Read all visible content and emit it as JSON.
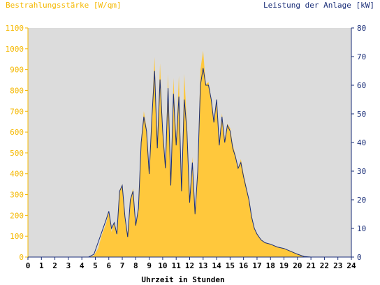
{
  "chart_data": {
    "type": "area",
    "left_axis_title": "Bestrahlungsstärke [W/qm]",
    "right_axis_title": "Leistung der Anlage [kW]",
    "xlabel": "Uhrzeit in Stunden",
    "xlim": [
      0,
      24
    ],
    "ylim_left": [
      0,
      1100
    ],
    "ylim_right": [
      0,
      80
    ],
    "x_ticks": [
      "0",
      "1",
      "2",
      "3",
      "4",
      "5",
      "6",
      "7",
      "8",
      "9",
      "10",
      "11",
      "12",
      "13",
      "14",
      "15",
      "16",
      "17",
      "18",
      "19",
      "20",
      "21",
      "22",
      "23",
      "24"
    ],
    "left_ticks": [
      "0",
      "100",
      "200",
      "300",
      "400",
      "500",
      "600",
      "700",
      "800",
      "900",
      "1000",
      "1100"
    ],
    "right_ticks": [
      "0",
      "10",
      "20",
      "30",
      "40",
      "50",
      "60",
      "70",
      "80"
    ],
    "series": [
      {
        "name": "Bestrahlungsstärke",
        "axis": "left",
        "style": "filled-area",
        "points": [
          [
            0,
            0
          ],
          [
            4.5,
            0
          ],
          [
            4.9,
            8
          ],
          [
            5.2,
            40
          ],
          [
            5.5,
            110
          ],
          [
            5.8,
            160
          ],
          [
            6.0,
            220
          ],
          [
            6.2,
            120
          ],
          [
            6.4,
            170
          ],
          [
            6.6,
            100
          ],
          [
            6.8,
            320
          ],
          [
            7.0,
            350
          ],
          [
            7.2,
            200
          ],
          [
            7.4,
            90
          ],
          [
            7.6,
            280
          ],
          [
            7.8,
            330
          ],
          [
            8.0,
            150
          ],
          [
            8.2,
            240
          ],
          [
            8.4,
            560
          ],
          [
            8.6,
            700
          ],
          [
            8.8,
            620
          ],
          [
            9.0,
            400
          ],
          [
            9.2,
            700
          ],
          [
            9.4,
            960
          ],
          [
            9.6,
            550
          ],
          [
            9.8,
            930
          ],
          [
            10.0,
            620
          ],
          [
            10.2,
            440
          ],
          [
            10.4,
            880
          ],
          [
            10.6,
            350
          ],
          [
            10.8,
            860
          ],
          [
            11.0,
            560
          ],
          [
            11.2,
            870
          ],
          [
            11.4,
            330
          ],
          [
            11.6,
            880
          ],
          [
            11.8,
            640
          ],
          [
            12.0,
            260
          ],
          [
            12.2,
            480
          ],
          [
            12.4,
            210
          ],
          [
            12.6,
            430
          ],
          [
            12.8,
            900
          ],
          [
            13.0,
            990
          ],
          [
            13.2,
            830
          ],
          [
            13.4,
            840
          ],
          [
            13.6,
            760
          ],
          [
            13.8,
            640
          ],
          [
            14.0,
            760
          ],
          [
            14.2,
            540
          ],
          [
            14.4,
            690
          ],
          [
            14.6,
            560
          ],
          [
            14.8,
            640
          ],
          [
            15.0,
            620
          ],
          [
            15.2,
            540
          ],
          [
            15.4,
            490
          ],
          [
            15.6,
            430
          ],
          [
            15.8,
            470
          ],
          [
            16.0,
            400
          ],
          [
            16.2,
            340
          ],
          [
            16.4,
            280
          ],
          [
            16.6,
            200
          ],
          [
            16.8,
            140
          ],
          [
            17.0,
            110
          ],
          [
            17.3,
            85
          ],
          [
            17.6,
            70
          ],
          [
            18.0,
            60
          ],
          [
            18.5,
            50
          ],
          [
            19.0,
            40
          ],
          [
            19.5,
            30
          ],
          [
            20.0,
            15
          ],
          [
            20.5,
            3
          ],
          [
            21.0,
            0
          ],
          [
            24,
            0
          ]
        ]
      },
      {
        "name": "Leistung der Anlage",
        "axis": "right",
        "style": "line",
        "points": [
          [
            0,
            0
          ],
          [
            4.5,
            0
          ],
          [
            4.9,
            1
          ],
          [
            5.2,
            5
          ],
          [
            5.5,
            9
          ],
          [
            5.8,
            13
          ],
          [
            6.0,
            16
          ],
          [
            6.2,
            10
          ],
          [
            6.4,
            12
          ],
          [
            6.6,
            8
          ],
          [
            6.8,
            23
          ],
          [
            7.0,
            25
          ],
          [
            7.2,
            14
          ],
          [
            7.4,
            7
          ],
          [
            7.6,
            20
          ],
          [
            7.8,
            23
          ],
          [
            8.0,
            11
          ],
          [
            8.2,
            17
          ],
          [
            8.4,
            40
          ],
          [
            8.6,
            49
          ],
          [
            8.8,
            44
          ],
          [
            9.0,
            29
          ],
          [
            9.2,
            49
          ],
          [
            9.4,
            65
          ],
          [
            9.6,
            38
          ],
          [
            9.8,
            62
          ],
          [
            10.0,
            44
          ],
          [
            10.2,
            31
          ],
          [
            10.4,
            59
          ],
          [
            10.6,
            25
          ],
          [
            10.8,
            57
          ],
          [
            11.0,
            39
          ],
          [
            11.2,
            56
          ],
          [
            11.4,
            23
          ],
          [
            11.6,
            55
          ],
          [
            11.8,
            44
          ],
          [
            12.0,
            19
          ],
          [
            12.2,
            33
          ],
          [
            12.4,
            15
          ],
          [
            12.6,
            30
          ],
          [
            12.8,
            60
          ],
          [
            13.0,
            66
          ],
          [
            13.2,
            60
          ],
          [
            13.4,
            60
          ],
          [
            13.6,
            55
          ],
          [
            13.8,
            47
          ],
          [
            14.0,
            55
          ],
          [
            14.2,
            39
          ],
          [
            14.4,
            49
          ],
          [
            14.6,
            40
          ],
          [
            14.8,
            46
          ],
          [
            15.0,
            44
          ],
          [
            15.2,
            38
          ],
          [
            15.4,
            35
          ],
          [
            15.6,
            31
          ],
          [
            15.8,
            33
          ],
          [
            16.0,
            28
          ],
          [
            16.2,
            24
          ],
          [
            16.4,
            20
          ],
          [
            16.6,
            14
          ],
          [
            16.8,
            10
          ],
          [
            17.0,
            8
          ],
          [
            17.3,
            6
          ],
          [
            17.6,
            5
          ],
          [
            18.0,
            4.5
          ],
          [
            18.5,
            3.5
          ],
          [
            19.0,
            3
          ],
          [
            19.5,
            2
          ],
          [
            20.0,
            1
          ],
          [
            20.5,
            0.2
          ],
          [
            21.0,
            0
          ],
          [
            24,
            0
          ]
        ]
      }
    ],
    "colors": {
      "plot_bg": "#dcdcdc",
      "area_fill": "#ffc83c",
      "line": "#1a2e78",
      "left_axis": "#f5b800",
      "right_axis": "#1a2e78"
    },
    "grid": false
  }
}
